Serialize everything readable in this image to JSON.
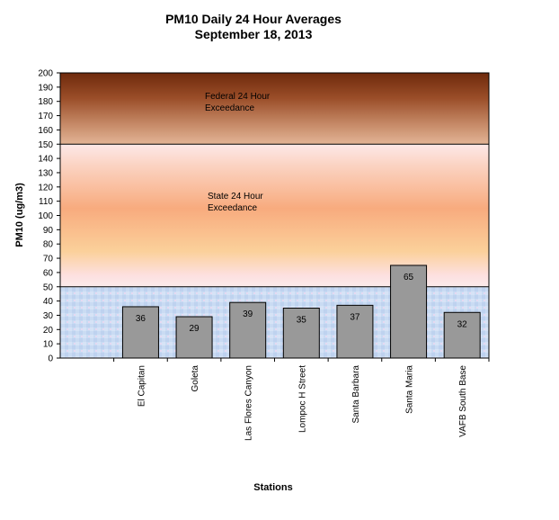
{
  "chart_data": {
    "type": "bar",
    "title": "PM10 Daily 24 Hour Averages",
    "subtitle": "September 18, 2013",
    "xlabel": "Stations",
    "ylabel": "PM10 (ug/m3)",
    "ylim": [
      0,
      200
    ],
    "ytick_step": 10,
    "categories": [
      "El Capitan",
      "Goleta",
      "Las Flores Canyon",
      "Lompoc H Street",
      "Santa Barbara",
      "Santa Maria",
      "VAFB South Base"
    ],
    "values": [
      36,
      29,
      39,
      35,
      37,
      65,
      32
    ],
    "bar_color": "#999999",
    "zones": [
      {
        "label": "",
        "from": 0,
        "to": 50,
        "color": "#c6d8f2"
      },
      {
        "label": "State 24 Hour Exceedance",
        "from": 50,
        "to": 150,
        "color": "#f8c28c"
      },
      {
        "label": "Federal 24 Hour Exceedance",
        "from": 150,
        "to": 200,
        "color": "#8b3a18"
      }
    ],
    "thresholds": [
      50,
      150
    ],
    "grid": false,
    "legend": "none"
  }
}
